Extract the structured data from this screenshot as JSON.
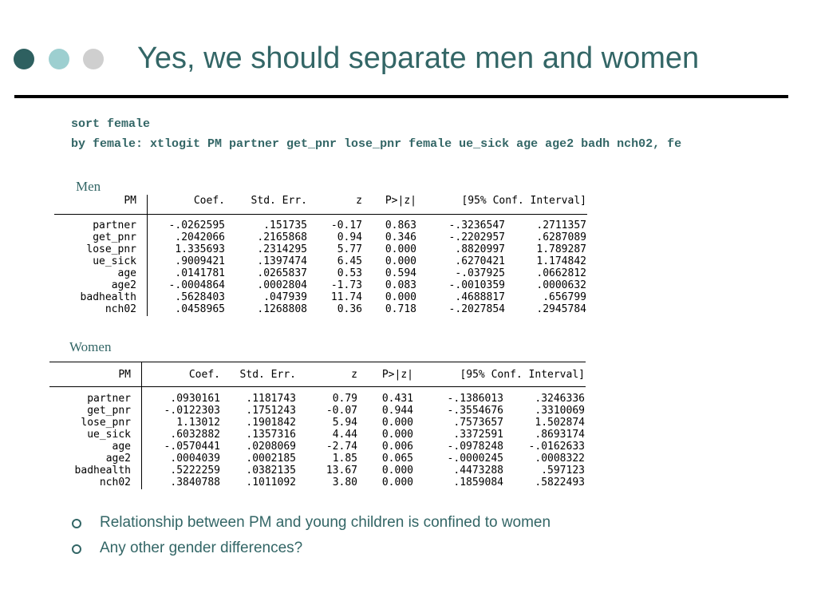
{
  "slide": {
    "title": "Yes, we should separate men and women",
    "dots": [
      "#2e6060",
      "#9dcfd0",
      "#cfcfcf"
    ],
    "code_lines": [
      "sort female",
      "by female: xtlogit PM partner get_pnr lose_pnr female ue_sick age age2 badh nch02, fe"
    ]
  },
  "men": {
    "label": "Men",
    "headers": [
      "PM",
      "Coef.",
      "Std. Err.",
      "z",
      "P>|z|",
      "[95% Conf. Interval]"
    ],
    "rows": [
      [
        "partner",
        "-.0262595",
        ".151735",
        "-0.17",
        "0.863",
        "-.3236547",
        ".2711357"
      ],
      [
        "get_pnr",
        ".2042066",
        ".2165868",
        "0.94",
        "0.346",
        "-.2202957",
        ".6287089"
      ],
      [
        "lose_pnr",
        "1.335693",
        ".2314295",
        "5.77",
        "0.000",
        ".8820997",
        "1.789287"
      ],
      [
        "ue_sick",
        ".9009421",
        ".1397474",
        "6.45",
        "0.000",
        ".6270421",
        "1.174842"
      ],
      [
        "age",
        ".0141781",
        ".0265837",
        "0.53",
        "0.594",
        "-.037925",
        ".0662812"
      ],
      [
        "age2",
        "-.0004864",
        ".0002804",
        "-1.73",
        "0.083",
        "-.0010359",
        ".0000632"
      ],
      [
        "badhealth",
        ".5628403",
        ".047939",
        "11.74",
        "0.000",
        ".4688817",
        ".656799"
      ],
      [
        "nch02",
        ".0458965",
        ".1268808",
        "0.36",
        "0.718",
        "-.2027854",
        ".2945784"
      ]
    ]
  },
  "women": {
    "label": "Women",
    "headers": [
      "PM",
      "Coef.",
      "Std. Err.",
      "z",
      "P>|z|",
      "[95% Conf. Interval]"
    ],
    "rows": [
      [
        "partner",
        ".0930161",
        ".1181743",
        "0.79",
        "0.431",
        "-.1386013",
        ".3246336"
      ],
      [
        "get_pnr",
        "-.0122303",
        ".1751243",
        "-0.07",
        "0.944",
        "-.3554676",
        ".3310069"
      ],
      [
        "lose_pnr",
        "1.13012",
        ".1901842",
        "5.94",
        "0.000",
        ".7573657",
        "1.502874"
      ],
      [
        "ue_sick",
        ".6032882",
        ".1357316",
        "4.44",
        "0.000",
        ".3372591",
        ".8693174"
      ],
      [
        "age",
        "-.0570441",
        ".0208069",
        "-2.74",
        "0.006",
        "-.0978248",
        "-.0162633"
      ],
      [
        "age2",
        ".0004039",
        ".0002185",
        "1.85",
        "0.065",
        "-.0000245",
        ".0008322"
      ],
      [
        "badhealth",
        ".5222259",
        ".0382135",
        "13.67",
        "0.000",
        ".4473288",
        ".597123"
      ],
      [
        "nch02",
        ".3840788",
        ".1011092",
        "3.80",
        "0.000",
        ".1859084",
        ".5822493"
      ]
    ]
  },
  "bullets": [
    "Relationship between PM and young children is confined to women",
    "Any other gender differences?"
  ]
}
